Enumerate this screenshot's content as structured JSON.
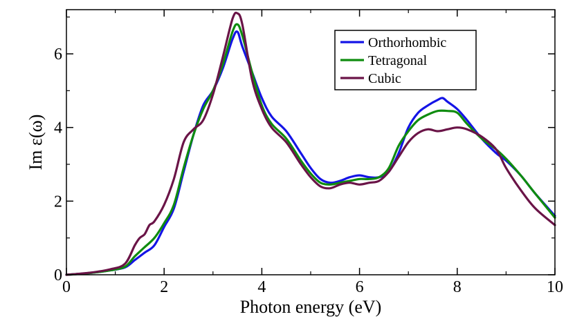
{
  "chart_data": {
    "type": "line",
    "title": "",
    "xlabel": "Photon energy (eV)",
    "ylabel": "Im ε(ω)",
    "xlim": [
      0,
      10
    ],
    "ylim": [
      0,
      7.2
    ],
    "xticks": [
      0,
      2,
      4,
      6,
      8,
      10
    ],
    "yticks": [
      0,
      2,
      4,
      6
    ],
    "xtick_labels": [
      "0",
      "2",
      "4",
      "6",
      "8",
      "10"
    ],
    "ytick_labels": [
      "0",
      "2",
      "4",
      "6"
    ],
    "grid": false,
    "legend_position": "top-right",
    "series": [
      {
        "name": "Orthorhombic",
        "color": "#1414e6",
        "x": [
          0,
          0.5,
          0.9,
          1.2,
          1.4,
          1.6,
          1.8,
          2.0,
          2.2,
          2.4,
          2.6,
          2.8,
          3.0,
          3.2,
          3.4,
          3.5,
          3.6,
          3.8,
          4.0,
          4.2,
          4.5,
          4.8,
          5.0,
          5.2,
          5.4,
          5.6,
          5.8,
          6.0,
          6.2,
          6.4,
          6.6,
          6.8,
          7.0,
          7.2,
          7.4,
          7.6,
          7.7,
          7.8,
          8.0,
          8.2,
          8.5,
          8.8,
          9.0,
          9.3,
          9.6,
          10.0
        ],
        "y": [
          0,
          0.05,
          0.12,
          0.2,
          0.4,
          0.6,
          0.8,
          1.3,
          1.8,
          2.8,
          3.8,
          4.6,
          5.0,
          5.6,
          6.4,
          6.6,
          6.2,
          5.5,
          4.8,
          4.3,
          3.9,
          3.3,
          2.9,
          2.6,
          2.5,
          2.55,
          2.65,
          2.7,
          2.65,
          2.65,
          2.8,
          3.3,
          4.0,
          4.4,
          4.6,
          4.75,
          4.8,
          4.7,
          4.5,
          4.2,
          3.7,
          3.3,
          3.1,
          2.7,
          2.2,
          1.6
        ]
      },
      {
        "name": "Tetragonal",
        "color": "#0f8c0f",
        "x": [
          0,
          0.5,
          0.9,
          1.2,
          1.4,
          1.6,
          1.8,
          2.0,
          2.2,
          2.4,
          2.6,
          2.8,
          3.0,
          3.2,
          3.4,
          3.5,
          3.6,
          3.8,
          4.0,
          4.2,
          4.5,
          4.8,
          5.0,
          5.2,
          5.4,
          5.6,
          5.8,
          6.0,
          6.2,
          6.4,
          6.6,
          6.8,
          7.0,
          7.2,
          7.4,
          7.6,
          7.8,
          8.0,
          8.2,
          8.5,
          8.8,
          9.0,
          9.3,
          9.6,
          10.0
        ],
        "y": [
          0,
          0.05,
          0.12,
          0.22,
          0.5,
          0.75,
          1.0,
          1.4,
          1.9,
          2.9,
          3.8,
          4.5,
          5.0,
          5.7,
          6.6,
          6.8,
          6.5,
          5.5,
          4.6,
          4.1,
          3.7,
          3.1,
          2.75,
          2.5,
          2.45,
          2.5,
          2.55,
          2.6,
          2.6,
          2.65,
          2.9,
          3.5,
          3.9,
          4.2,
          4.35,
          4.45,
          4.45,
          4.4,
          4.1,
          3.7,
          3.4,
          3.15,
          2.7,
          2.2,
          1.55
        ]
      },
      {
        "name": "Cubic",
        "color": "#6a1447",
        "x": [
          0,
          0.5,
          0.9,
          1.2,
          1.4,
          1.5,
          1.6,
          1.7,
          1.8,
          2.0,
          2.2,
          2.4,
          2.6,
          2.8,
          3.0,
          3.2,
          3.4,
          3.5,
          3.6,
          3.8,
          4.0,
          4.2,
          4.5,
          4.8,
          5.0,
          5.2,
          5.4,
          5.6,
          5.8,
          6.0,
          6.2,
          6.4,
          6.6,
          6.8,
          7.0,
          7.2,
          7.4,
          7.6,
          7.8,
          8.0,
          8.2,
          8.5,
          8.8,
          9.0,
          9.3,
          9.6,
          10.0
        ],
        "y": [
          0,
          0.06,
          0.15,
          0.3,
          0.8,
          1.0,
          1.1,
          1.35,
          1.45,
          1.9,
          2.6,
          3.6,
          3.95,
          4.2,
          4.9,
          5.9,
          6.95,
          7.1,
          6.8,
          5.3,
          4.5,
          4.0,
          3.6,
          3.0,
          2.65,
          2.4,
          2.35,
          2.45,
          2.5,
          2.45,
          2.5,
          2.55,
          2.8,
          3.2,
          3.6,
          3.85,
          3.95,
          3.9,
          3.95,
          4.0,
          3.95,
          3.75,
          3.4,
          2.9,
          2.3,
          1.8,
          1.35
        ]
      }
    ]
  }
}
